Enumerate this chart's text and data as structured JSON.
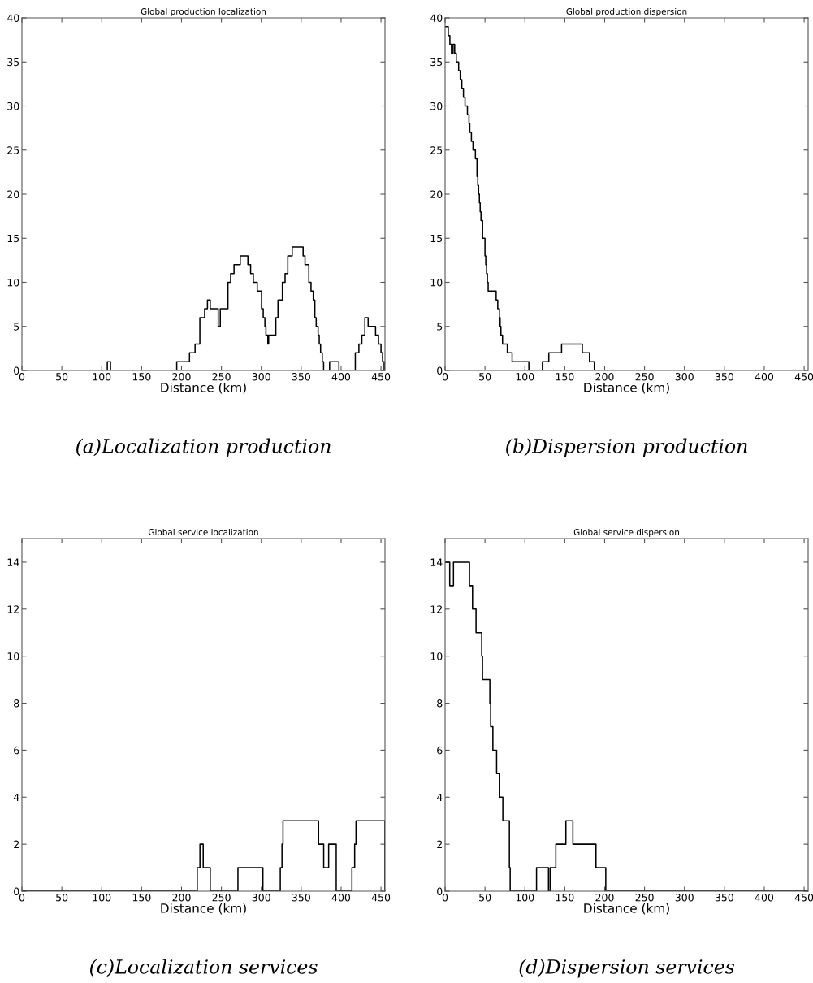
{
  "chart_data": [
    {
      "type": "step",
      "title": "Global production localization",
      "xlabel": "Distance (km)",
      "color": "#000000",
      "grid": false,
      "x": [
        0,
        107,
        111,
        194,
        210,
        217,
        223,
        229,
        232.5,
        236,
        246,
        248.6,
        258.2,
        261.6,
        265.8,
        273.6,
        283.2,
        286.6,
        290,
        294.9,
        300.3,
        302.4,
        304.5,
        305.8,
        308.2,
        309.2,
        318.2,
        320.9,
        326.4,
        329.8,
        333.2,
        338.7,
        352.4,
        354.8,
        359.6,
        362.3,
        365.1,
        367.1,
        368.8,
        371.2,
        372.6,
        374.3,
        376.4,
        378.1,
        385.6,
        397.3,
        417.8,
        422.3,
        426,
        429.8,
        433.9,
        443.2,
        446.9,
        450,
        452,
        454
      ],
      "values": [
        0,
        1,
        0,
        1,
        2,
        3,
        6,
        7,
        8,
        7,
        5,
        7,
        10,
        11,
        12,
        13,
        12,
        11,
        10,
        9,
        7,
        6,
        5,
        4,
        3,
        4,
        6,
        8,
        10,
        11,
        13,
        14,
        13,
        12,
        10,
        9,
        8,
        6,
        5,
        4,
        3,
        2,
        1,
        0,
        1,
        0,
        2,
        3,
        4,
        6,
        5,
        4,
        3,
        2,
        1,
        0
      ],
      "xlim": [
        0,
        455
      ],
      "xticks": [
        0,
        50,
        100,
        150,
        200,
        250,
        300,
        350,
        400,
        450
      ],
      "ylim": [
        0,
        40
      ],
      "yticks": [
        0,
        5,
        10,
        15,
        20,
        25,
        30,
        35,
        40
      ],
      "annotations": [
        "(a)Localization production"
      ]
    },
    {
      "type": "step",
      "title": "Global production dispersion",
      "xlabel": "Distance (km)",
      "color": "#000000",
      "grid": false,
      "x": [
        0,
        4,
        6,
        8,
        10,
        12,
        14,
        17,
        19,
        21,
        23,
        25,
        28,
        30,
        31,
        33,
        35,
        38,
        40,
        41,
        42,
        43,
        44,
        45,
        47,
        50,
        51,
        52,
        53,
        54,
        64,
        66,
        68,
        69,
        70,
        72,
        78,
        84,
        105,
        122,
        130,
        146,
        172,
        181,
        187,
        455
      ],
      "values": [
        39,
        38,
        37,
        36,
        37,
        36,
        35,
        34,
        33,
        32,
        31,
        30,
        29,
        28,
        27,
        26,
        25,
        24,
        22,
        21,
        20,
        19,
        18,
        17,
        15,
        13,
        12,
        11,
        10,
        9,
        8,
        7,
        6,
        5,
        4,
        3,
        2,
        1,
        0,
        1,
        2,
        3,
        2,
        1,
        0,
        0
      ],
      "xlim": [
        0,
        455
      ],
      "xticks": [
        0,
        50,
        100,
        150,
        200,
        250,
        300,
        350,
        400,
        450
      ],
      "ylim": [
        0,
        40
      ],
      "yticks": [
        0,
        5,
        10,
        15,
        20,
        25,
        30,
        35,
        40
      ],
      "annotations": [
        "(b)Dispersion production"
      ]
    },
    {
      "type": "step",
      "title": "Global service localization",
      "xlabel": "Distance (km)",
      "color": "#000000",
      "grid": false,
      "x": [
        0,
        219.7,
        223.1,
        227.2,
        236,
        270.7,
        302,
        323.8,
        325.9,
        327.2,
        371.8,
        378.2,
        384.4,
        393.9,
        413.6,
        417,
        418.7,
        455
      ],
      "values": [
        0,
        1,
        2,
        1,
        0,
        1,
        0,
        1,
        2,
        3,
        2,
        1,
        2,
        0,
        1,
        2,
        3,
        0
      ],
      "xlim": [
        0,
        455
      ],
      "xticks": [
        0,
        50,
        100,
        150,
        200,
        250,
        300,
        350,
        400,
        450
      ],
      "ylim": [
        0,
        15
      ],
      "yticks": [
        0,
        2,
        4,
        6,
        8,
        10,
        12,
        14
      ],
      "annotations": [
        "(c)Localization services"
      ]
    },
    {
      "type": "step",
      "title": "Global service dispersion",
      "xlabel": "Distance (km)",
      "color": "#000000",
      "grid": false,
      "x": [
        0,
        5.8,
        10.5,
        30.6,
        34.4,
        38.8,
        45.9,
        46.9,
        56.1,
        57.1,
        59.9,
        64.6,
        68.4,
        72.4,
        80.6,
        81.6,
        114.6,
        129.6,
        131.6,
        138.8,
        151.4,
        160.2,
        189.1,
        201.4,
        455
      ],
      "values": [
        14,
        13,
        14,
        13,
        12,
        11,
        10,
        9,
        8,
        7,
        6,
        5,
        4,
        3,
        1,
        0,
        1,
        0,
        1,
        2,
        3,
        2,
        1,
        0,
        0
      ],
      "xlim": [
        0,
        455
      ],
      "xticks": [
        0,
        50,
        100,
        150,
        200,
        250,
        300,
        350,
        400,
        450
      ],
      "ylim": [
        0,
        15
      ],
      "yticks": [
        0,
        2,
        4,
        6,
        8,
        10,
        12,
        14
      ],
      "annotations": [
        "(d)Dispersion services"
      ]
    }
  ]
}
